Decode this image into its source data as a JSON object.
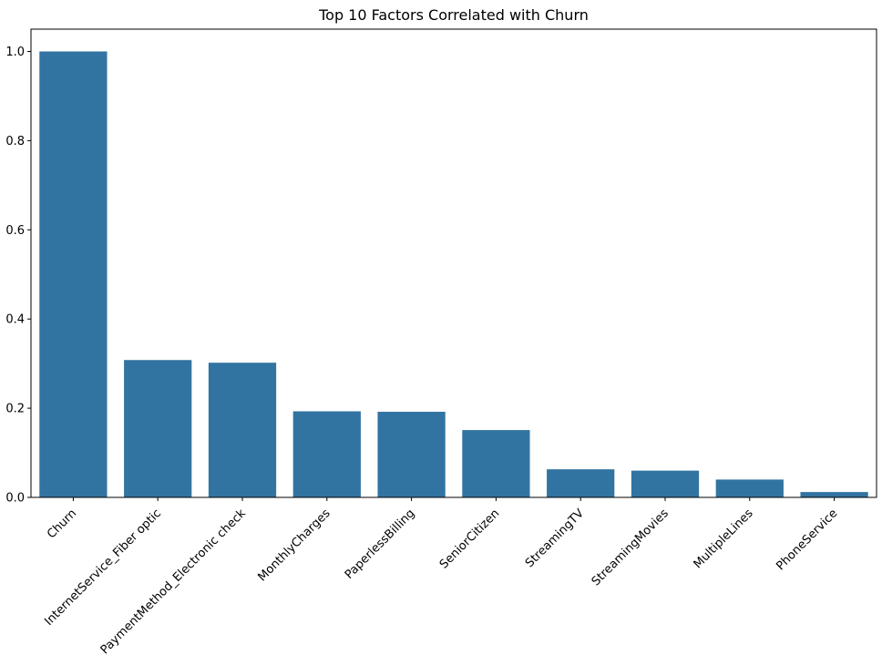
{
  "chart_data": {
    "type": "bar",
    "title": "Top 10 Factors Correlated with Churn",
    "xlabel": "",
    "ylabel": "",
    "categories": [
      "Churn",
      "InternetService_Fiber optic",
      "PaymentMethod_Electronic check",
      "MonthlyCharges",
      "PaperlessBilling",
      "SeniorCitizen",
      "StreamingTV",
      "StreamingMovies",
      "MultipleLines",
      "PhoneService"
    ],
    "values": [
      1.0,
      0.308,
      0.302,
      0.193,
      0.192,
      0.151,
      0.063,
      0.06,
      0.04,
      0.012
    ],
    "ylim": [
      0,
      1.05
    ],
    "yticks": [
      0.0,
      0.2,
      0.4,
      0.6,
      0.8,
      1.0
    ],
    "ytick_labels": [
      "0.0",
      "0.2",
      "0.4",
      "0.6",
      "0.8",
      "1.0"
    ],
    "bar_color": "#3274a1",
    "grid": false,
    "legend": "none"
  }
}
